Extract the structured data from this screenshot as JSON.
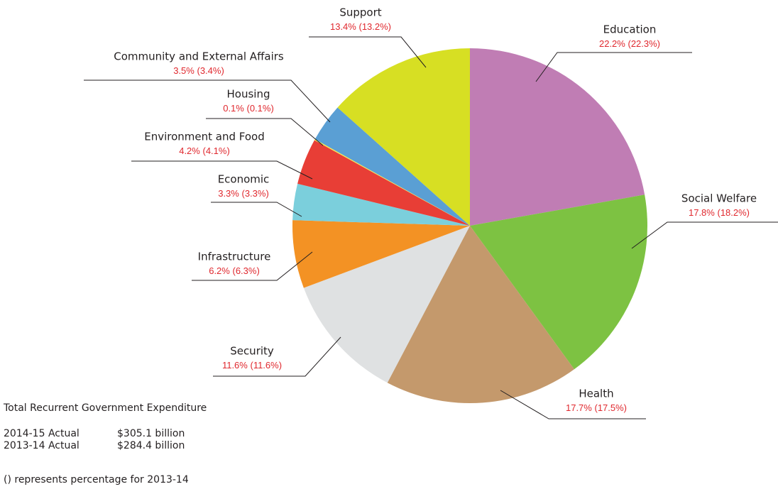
{
  "chart_data": {
    "type": "pie",
    "categories": [
      "Education",
      "Social Welfare",
      "Health",
      "Security",
      "Infrastructure",
      "Economic",
      "Environment and Food",
      "Housing",
      "Community and External Affairs",
      "Support"
    ],
    "values": [
      22.2,
      17.8,
      17.7,
      11.6,
      6.2,
      3.3,
      4.2,
      0.1,
      3.5,
      13.4
    ],
    "value_labels": [
      "22.2%",
      "17.8%",
      "17.7%",
      "11.6%",
      "6.2%",
      "3.3%",
      "4.2%",
      "0.1%",
      "3.5%",
      "13.4%"
    ],
    "previous_values": [
      22.3,
      18.2,
      17.5,
      11.6,
      6.3,
      3.3,
      4.1,
      0.1,
      3.4,
      13.2
    ],
    "previous_value_labels": [
      "(22.3%)",
      "(18.2%)",
      "(17.5%)",
      "(11.6%)",
      "(6.3%)",
      "(3.3%)",
      "(4.1%)",
      "(0.1%)",
      "(3.4%)",
      "(13.2%)"
    ],
    "colors": [
      "#c07db4",
      "#7dc242",
      "#c4996c",
      "#dfe1e2",
      "#f39224",
      "#7bcfdc",
      "#e83e36",
      "#f5e94b",
      "#5a9fd4",
      "#d7df23"
    ],
    "notes": {
      "title": "Total Recurrent Government Expenditure",
      "rows": [
        [
          "2014-15 Actual",
          "$305.1 billion"
        ],
        [
          "2013-14 Actual",
          "$284.4 billion"
        ]
      ],
      "footnote": "() represents percentage for 2013-14"
    }
  }
}
